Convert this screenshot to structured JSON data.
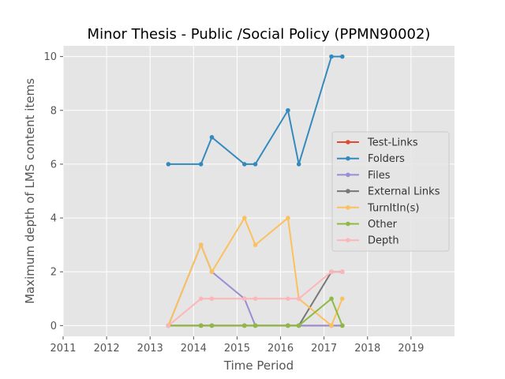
{
  "chart_data": {
    "type": "line",
    "title": "Minor Thesis - Public /Social Policy (PPMN90002)",
    "xlabel": "Time Period",
    "ylabel": "Maximum depth of LMS content items",
    "xlim": [
      2011,
      2020
    ],
    "ylim": [
      -0.4,
      10.4
    ],
    "x_ticks": [
      "2011",
      "2012",
      "2013",
      "2014",
      "2015",
      "2016",
      "2017",
      "2018",
      "2019"
    ],
    "y_ticks": [
      "0",
      "2",
      "4",
      "6",
      "8",
      "10"
    ],
    "grid": true,
    "legend_position": "center-right",
    "series": [
      {
        "name": "Test-Links",
        "color": "#E24A33",
        "x": [
          2013.42,
          2014.17,
          2014.42,
          2015.17,
          2015.42,
          2016.17,
          2016.42,
          2017.17,
          2017.42
        ],
        "y": [
          0,
          0,
          0,
          0,
          0,
          0,
          0,
          0,
          0
        ]
      },
      {
        "name": "Folders",
        "color": "#348ABD",
        "x": [
          2013.42,
          2014.17,
          2014.42,
          2015.17,
          2015.42,
          2016.17,
          2016.42,
          2017.17,
          2017.42
        ],
        "y": [
          6,
          6,
          7,
          6,
          6,
          8,
          6,
          10,
          10
        ]
      },
      {
        "name": "Files",
        "color": "#988ED5",
        "x": [
          2013.42,
          2014.17,
          2014.42,
          2015.17,
          2015.42,
          2016.17,
          2016.42,
          2017.17,
          2017.42
        ],
        "y": [
          0,
          3,
          2,
          1,
          0,
          0,
          0,
          0,
          0
        ]
      },
      {
        "name": "External Links",
        "color": "#777777",
        "x": [
          2013.42,
          2014.17,
          2014.42,
          2015.17,
          2015.42,
          2016.17,
          2016.42,
          2017.17,
          2017.42
        ],
        "y": [
          0,
          0,
          0,
          0,
          0,
          0,
          0,
          2,
          2
        ]
      },
      {
        "name": "TurnItIn(s)",
        "color": "#FBC15E",
        "x": [
          2013.42,
          2014.17,
          2014.42,
          2015.17,
          2015.42,
          2016.17,
          2016.42,
          2017.17,
          2017.42
        ],
        "y": [
          0,
          3,
          2,
          4,
          3,
          4,
          1,
          0,
          1
        ]
      },
      {
        "name": "Other",
        "color": "#8EBA42",
        "x": [
          2013.42,
          2014.17,
          2014.42,
          2015.17,
          2015.42,
          2016.17,
          2016.42,
          2017.17,
          2017.42
        ],
        "y": [
          0,
          0,
          0,
          0,
          0,
          0,
          0,
          1,
          0
        ]
      },
      {
        "name": "Depth",
        "color": "#FFB5B8",
        "x": [
          2013.42,
          2014.17,
          2014.42,
          2015.17,
          2015.42,
          2016.17,
          2016.42,
          2017.17,
          2017.42
        ],
        "y": [
          0,
          1,
          1,
          1,
          1,
          1,
          1,
          2,
          2
        ]
      }
    ]
  }
}
